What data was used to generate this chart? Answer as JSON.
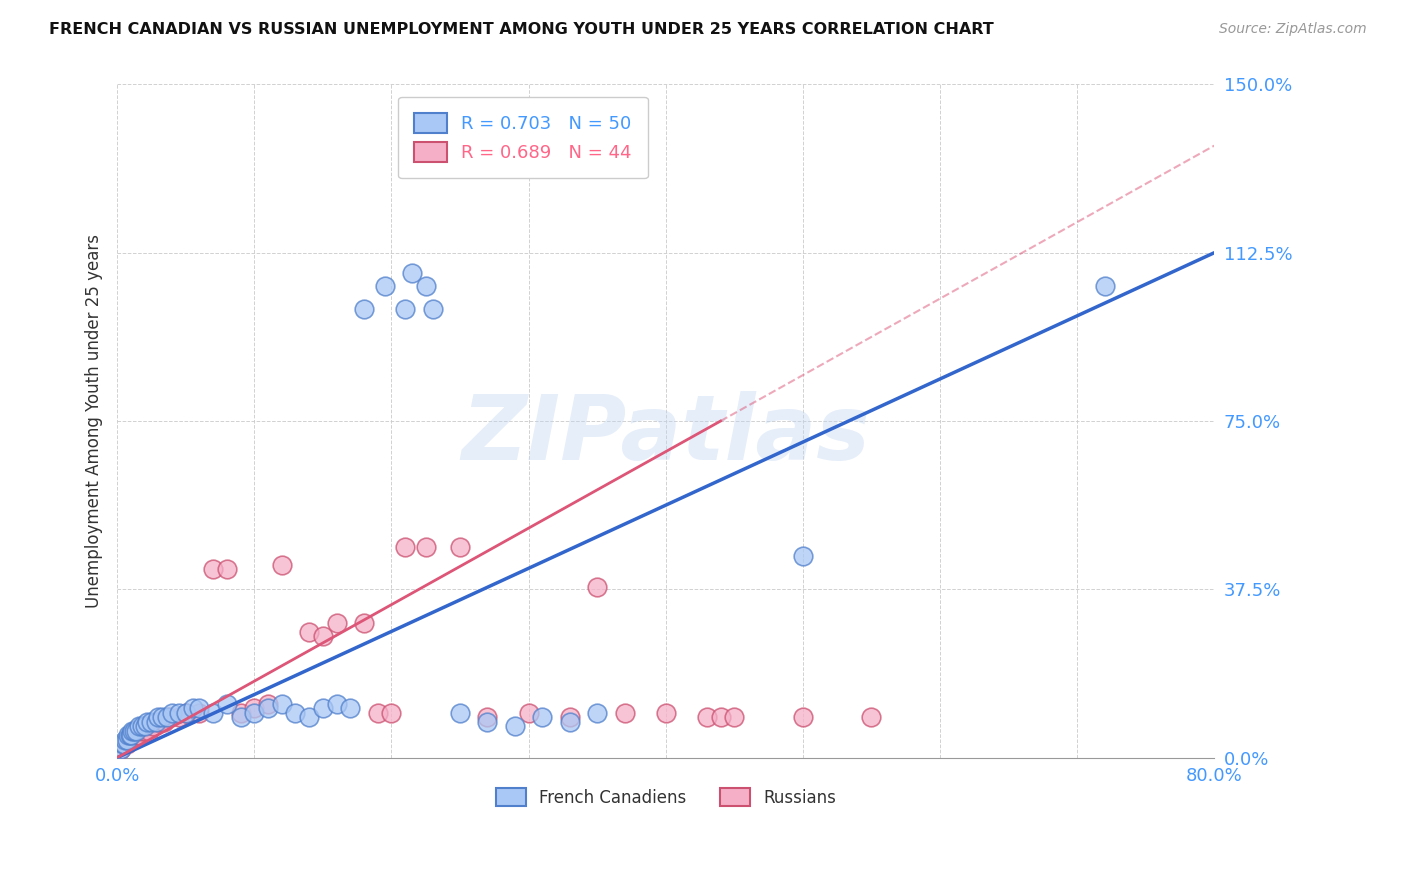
{
  "title": "FRENCH CANADIAN VS RUSSIAN UNEMPLOYMENT AMONG YOUTH UNDER 25 YEARS CORRELATION CHART",
  "source": "Source: ZipAtlas.com",
  "ylabel": "Unemployment Among Youth under 25 years",
  "ytick_labels": [
    "0.0%",
    "37.5%",
    "75.0%",
    "112.5%",
    "150.0%"
  ],
  "ytick_values": [
    0.0,
    37.5,
    75.0,
    112.5,
    150.0
  ],
  "xtick_labels": [
    "0.0%",
    "80.0%"
  ],
  "xtick_values": [
    0.0,
    80.0
  ],
  "xlim": [
    0.0,
    80.0
  ],
  "ylim": [
    0.0,
    150.0
  ],
  "watermark": "ZIPatlas",
  "fc_face_color": "#aac8f5",
  "fc_edge_color": "#5080cc",
  "ru_face_color": "#f5b0c8",
  "ru_edge_color": "#cc5070",
  "fc_line_color": "#3366cc",
  "ru_line_color": "#dd5577",
  "legend1_fc_label": "R = 0.703   N = 50",
  "legend1_ru_label": "R = 0.689   N = 44",
  "legend2_labels": [
    "French Canadiens",
    "Russians"
  ],
  "fc_line_x": [
    0,
    80
  ],
  "fc_line_y": [
    0,
    112.5
  ],
  "ru_line_x": [
    0,
    46
  ],
  "ru_line_y": [
    0,
    75
  ],
  "fc_x": [
    0.3,
    0.4,
    0.5,
    0.6,
    0.7,
    0.8,
    0.9,
    1.0,
    1.1,
    1.2,
    1.4,
    1.6,
    1.8,
    2.0,
    2.2,
    2.5,
    2.8,
    3.0,
    3.3,
    3.6,
    4.0,
    4.5,
    5.0,
    5.5,
    6.0,
    7.0,
    8.0,
    9.0,
    10.0,
    11.0,
    12.0,
    13.0,
    14.0,
    15.0,
    16.0,
    17.0,
    18.0,
    19.5,
    21.0,
    21.5,
    22.5,
    23.0,
    25.0,
    27.0,
    29.0,
    31.0,
    33.0,
    35.0,
    72.0,
    50.0
  ],
  "fc_y": [
    2,
    3,
    3,
    4,
    4,
    5,
    5,
    5,
    6,
    6,
    6,
    7,
    7,
    7,
    8,
    8,
    8,
    9,
    9,
    9,
    10,
    10,
    10,
    11,
    11,
    10,
    12,
    9,
    10,
    11,
    12,
    10,
    9,
    11,
    12,
    11,
    100,
    105,
    100,
    108,
    105,
    100,
    10,
    8,
    7,
    9,
    8,
    10,
    105,
    45
  ],
  "ru_x": [
    0.3,
    0.5,
    0.7,
    0.9,
    1.0,
    1.2,
    1.4,
    1.6,
    1.8,
    2.0,
    2.3,
    2.6,
    3.0,
    3.4,
    3.8,
    4.5,
    5.0,
    6.0,
    7.0,
    8.0,
    9.0,
    10.0,
    11.0,
    12.0,
    14.0,
    15.0,
    16.0,
    18.0,
    19.0,
    20.0,
    21.0,
    22.5,
    25.0,
    27.0,
    30.0,
    33.0,
    35.0,
    37.0,
    40.0,
    43.0,
    44.0,
    45.0,
    50.0,
    55.0
  ],
  "ru_y": [
    2,
    3,
    3,
    4,
    4,
    5,
    5,
    5,
    6,
    6,
    6,
    7,
    8,
    8,
    9,
    9,
    10,
    10,
    42,
    42,
    10,
    11,
    12,
    43,
    28,
    27,
    30,
    30,
    10,
    10,
    47,
    47,
    47,
    9,
    10,
    9,
    38,
    10,
    10,
    9,
    9,
    9,
    9,
    9
  ]
}
